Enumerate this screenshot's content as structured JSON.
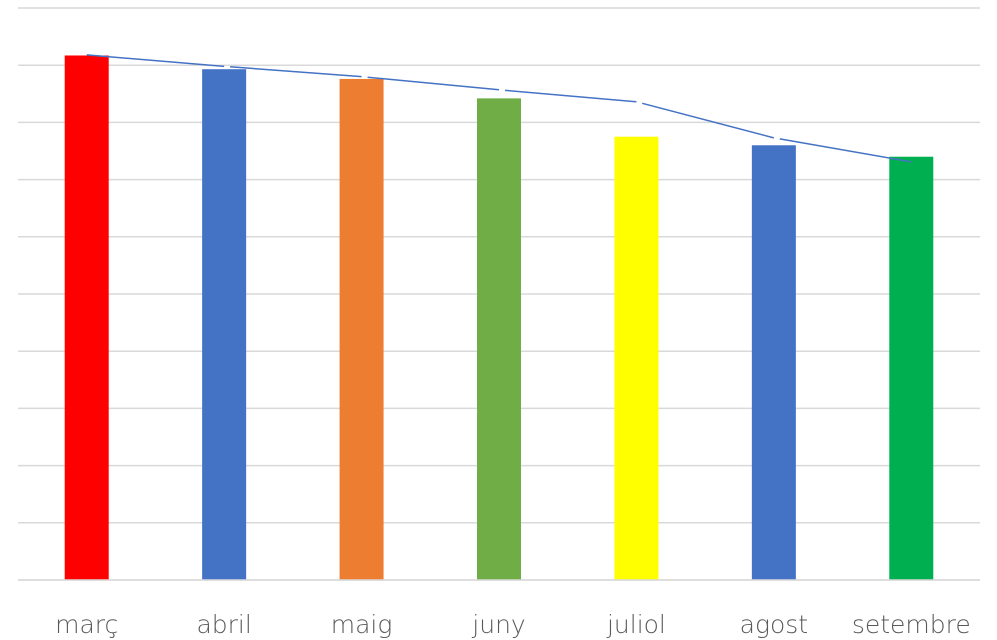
{
  "chart_data": {
    "type": "bar",
    "categories": [
      "març",
      "abril",
      "maig",
      "juny",
      "juliol",
      "agost",
      "setembre"
    ],
    "values": [
      9.17,
      8.93,
      8.76,
      8.42,
      7.75,
      7.6,
      7.4
    ],
    "bar_colors": [
      "#FF0000",
      "#4472C4",
      "#ED7D31",
      "#70AD47",
      "#FFFF00",
      "#4472C4",
      "#00B050"
    ],
    "ylim": [
      0,
      10
    ],
    "y_gridline_count": 11,
    "y_tick_labels_visible": false,
    "grid": true,
    "gridline_color": "#D9D9D9",
    "trendline": {
      "type": "line",
      "color": "#4472C4",
      "broken_segments": true,
      "points": [
        {
          "x": "març",
          "y": 9.18
        },
        {
          "x": "abril",
          "y": 8.98
        },
        {
          "x": "maig",
          "y": 8.8
        },
        {
          "x": "juny",
          "y": 8.57
        },
        {
          "x": "juliol",
          "y": 8.36
        },
        {
          "x": "agost",
          "y": 7.73
        },
        {
          "x": "setembre",
          "y": 7.31
        }
      ]
    },
    "title": "",
    "xlabel": "",
    "ylabel": ""
  }
}
